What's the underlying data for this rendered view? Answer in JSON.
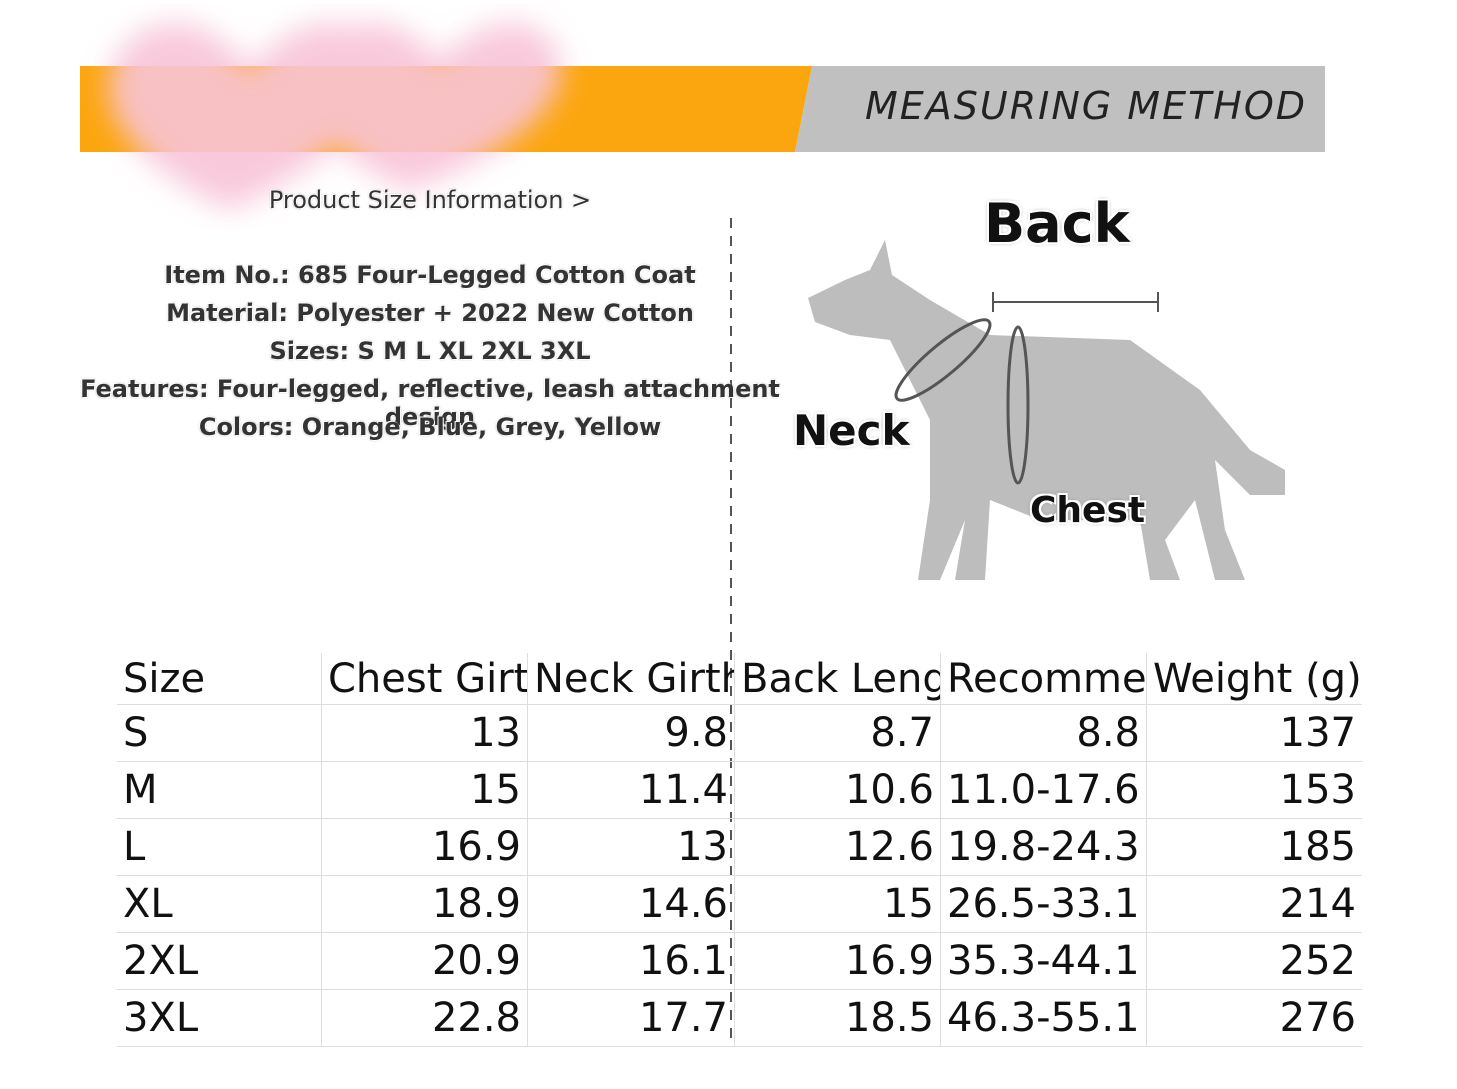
{
  "header": {
    "title": "MEASURING METHOD"
  },
  "info": {
    "heading": "Product Size Information >",
    "lines": [
      "Item No.: 685 Four-Legged Cotton Coat",
      "Material: Polyester + 2022 New Cotton",
      "Sizes: S M L XL 2XL 3XL",
      "Features: Four-legged, reflective, leash attachment design",
      "Colors: Orange, Blue, Grey, Yellow"
    ]
  },
  "diagram": {
    "back": "Back",
    "neck": "Neck",
    "chest": "Chest"
  },
  "table": {
    "columns": [
      "Size",
      "Chest Girth",
      "Neck Girth",
      "Back Leng",
      "Recomme",
      "Weight (g)"
    ],
    "rows": [
      [
        "S",
        13,
        9.8,
        8.7,
        8.8,
        137
      ],
      [
        "M",
        15,
        11.4,
        10.6,
        "11.0-17.6",
        153
      ],
      [
        "L",
        16.9,
        13,
        12.6,
        "19.8-24.3",
        185
      ],
      [
        "XL",
        18.9,
        14.6,
        15,
        "26.5-33.1",
        214
      ],
      [
        "2XL",
        20.9,
        16.1,
        16.9,
        "35.3-44.1",
        252
      ],
      [
        "3XL",
        22.8,
        17.7,
        18.5,
        "46.3-55.1",
        276
      ]
    ]
  }
}
